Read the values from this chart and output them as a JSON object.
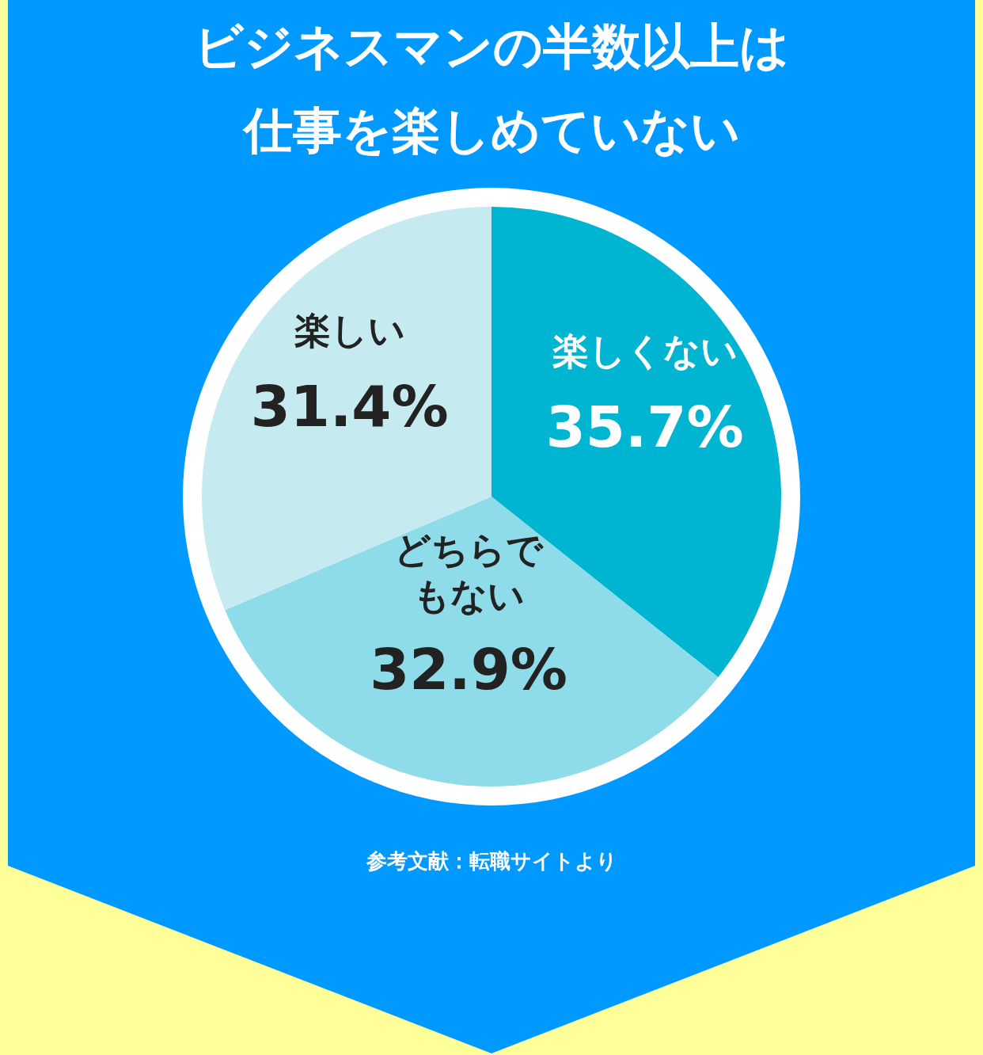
{
  "chart_data": {
    "type": "pie",
    "title": "ビジネスマンの半数以上は仕事を楽しめていない",
    "categories": [
      "楽しくない",
      "どちらでもない",
      "楽しい"
    ],
    "values": [
      35.7,
      32.9,
      31.4
    ],
    "colors": [
      "#00b5d1",
      "#8edbe9",
      "#c5ebf1"
    ],
    "value_labels": [
      "35.7%",
      "32.9%",
      "31.4%"
    ],
    "annotations": [
      "参考文献：転職サイトより"
    ]
  }
}
